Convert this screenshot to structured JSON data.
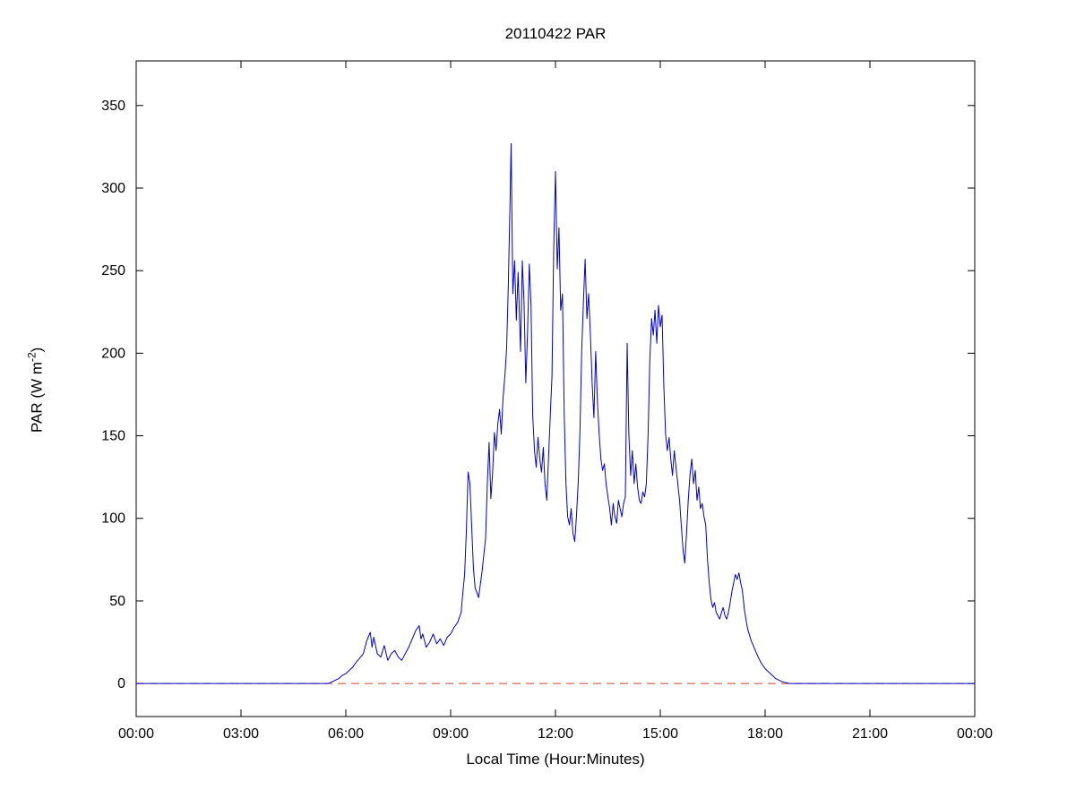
{
  "chart_data": {
    "type": "line",
    "title": "20110422 PAR",
    "xlabel": "Local Time (Hour:Minutes)",
    "ylabel": {
      "pre": "PAR (W m",
      "sup": "-2",
      "post": ")"
    },
    "xlim": [
      0,
      24
    ],
    "ylim": [
      -20,
      377
    ],
    "xticks": {
      "values": [
        0,
        3,
        6,
        9,
        12,
        15,
        18,
        21,
        24
      ],
      "labels": [
        "00:00",
        "03:00",
        "06:00",
        "09:00",
        "12:00",
        "15:00",
        "18:00",
        "21:00",
        "00:00"
      ]
    },
    "yticks": {
      "values": [
        0,
        50,
        100,
        150,
        200,
        250,
        300,
        350
      ],
      "labels": [
        "0",
        "50",
        "100",
        "150",
        "200",
        "250",
        "300",
        "350"
      ]
    },
    "grid": false,
    "box": true,
    "colors": {
      "series": "#0000cc",
      "zero_line": "#cc4433",
      "axis": "#000000"
    },
    "zero_line": {
      "y": 0,
      "style": "dashed"
    },
    "series": [
      {
        "name": "PAR",
        "points": [
          [
            0,
            0
          ],
          [
            1,
            0
          ],
          [
            2,
            0
          ],
          [
            3,
            0
          ],
          [
            4,
            0
          ],
          [
            5,
            0
          ],
          [
            5.5,
            0
          ],
          [
            5.6,
            1
          ],
          [
            5.7,
            2
          ],
          [
            5.8,
            3
          ],
          [
            5.9,
            5
          ],
          [
            6.0,
            6
          ],
          [
            6.1,
            8
          ],
          [
            6.2,
            10
          ],
          [
            6.3,
            13
          ],
          [
            6.5,
            18
          ],
          [
            6.6,
            26
          ],
          [
            6.7,
            31
          ],
          [
            6.75,
            22
          ],
          [
            6.8,
            28
          ],
          [
            6.9,
            18
          ],
          [
            7.0,
            16
          ],
          [
            7.1,
            23
          ],
          [
            7.2,
            14
          ],
          [
            7.3,
            18
          ],
          [
            7.4,
            20
          ],
          [
            7.5,
            16
          ],
          [
            7.6,
            14
          ],
          [
            7.7,
            18
          ],
          [
            7.8,
            22
          ],
          [
            7.9,
            27
          ],
          [
            8.0,
            32
          ],
          [
            8.1,
            35
          ],
          [
            8.15,
            27
          ],
          [
            8.2,
            30
          ],
          [
            8.3,
            22
          ],
          [
            8.4,
            25
          ],
          [
            8.5,
            30
          ],
          [
            8.6,
            24
          ],
          [
            8.7,
            27
          ],
          [
            8.8,
            23
          ],
          [
            8.9,
            28
          ],
          [
            9.0,
            30
          ],
          [
            9.1,
            34
          ],
          [
            9.2,
            37
          ],
          [
            9.3,
            43
          ],
          [
            9.35,
            55
          ],
          [
            9.4,
            66
          ],
          [
            9.45,
            92
          ],
          [
            9.5,
            128
          ],
          [
            9.55,
            121
          ],
          [
            9.6,
            96
          ],
          [
            9.65,
            70
          ],
          [
            9.7,
            58
          ],
          [
            9.8,
            52
          ],
          [
            9.9,
            68
          ],
          [
            10.0,
            88
          ],
          [
            10.05,
            122
          ],
          [
            10.1,
            146
          ],
          [
            10.15,
            112
          ],
          [
            10.2,
            127
          ],
          [
            10.25,
            152
          ],
          [
            10.3,
            141
          ],
          [
            10.35,
            157
          ],
          [
            10.4,
            166
          ],
          [
            10.45,
            151
          ],
          [
            10.5,
            173
          ],
          [
            10.55,
            186
          ],
          [
            10.6,
            202
          ],
          [
            10.65,
            242
          ],
          [
            10.7,
            292
          ],
          [
            10.73,
            327
          ],
          [
            10.78,
            236
          ],
          [
            10.83,
            256
          ],
          [
            10.88,
            220
          ],
          [
            10.93,
            249
          ],
          [
            11.0,
            201
          ],
          [
            11.05,
            256
          ],
          [
            11.1,
            231
          ],
          [
            11.15,
            182
          ],
          [
            11.2,
            212
          ],
          [
            11.25,
            254
          ],
          [
            11.3,
            229
          ],
          [
            11.35,
            162
          ],
          [
            11.4,
            141
          ],
          [
            11.45,
            131
          ],
          [
            11.5,
            149
          ],
          [
            11.55,
            136
          ],
          [
            11.6,
            128
          ],
          [
            11.65,
            143
          ],
          [
            11.7,
            121
          ],
          [
            11.75,
            111
          ],
          [
            11.8,
            136
          ],
          [
            11.85,
            161
          ],
          [
            11.9,
            186
          ],
          [
            11.95,
            262
          ],
          [
            12.0,
            310
          ],
          [
            12.05,
            251
          ],
          [
            12.1,
            276
          ],
          [
            12.15,
            226
          ],
          [
            12.2,
            236
          ],
          [
            12.25,
            162
          ],
          [
            12.3,
            121
          ],
          [
            12.35,
            101
          ],
          [
            12.4,
            96
          ],
          [
            12.45,
            106
          ],
          [
            12.5,
            91
          ],
          [
            12.55,
            86
          ],
          [
            12.6,
            101
          ],
          [
            12.65,
            122
          ],
          [
            12.7,
            152
          ],
          [
            12.75,
            202
          ],
          [
            12.8,
            231
          ],
          [
            12.85,
            257
          ],
          [
            12.9,
            221
          ],
          [
            12.95,
            236
          ],
          [
            13.0,
            211
          ],
          [
            13.05,
            181
          ],
          [
            13.1,
            161
          ],
          [
            13.15,
            201
          ],
          [
            13.2,
            171
          ],
          [
            13.25,
            151
          ],
          [
            13.3,
            136
          ],
          [
            13.35,
            129
          ],
          [
            13.4,
            133
          ],
          [
            13.45,
            121
          ],
          [
            13.5,
            113
          ],
          [
            13.55,
            106
          ],
          [
            13.6,
            96
          ],
          [
            13.65,
            109
          ],
          [
            13.7,
            101
          ],
          [
            13.75,
            97
          ],
          [
            13.8,
            111
          ],
          [
            13.85,
            106
          ],
          [
            13.9,
            101
          ],
          [
            13.95,
            109
          ],
          [
            14.0,
            113
          ],
          [
            14.05,
            206
          ],
          [
            14.1,
            151
          ],
          [
            14.15,
            126
          ],
          [
            14.2,
            141
          ],
          [
            14.25,
            121
          ],
          [
            14.3,
            133
          ],
          [
            14.35,
            119
          ],
          [
            14.4,
            111
          ],
          [
            14.45,
            109
          ],
          [
            14.5,
            116
          ],
          [
            14.55,
            113
          ],
          [
            14.6,
            121
          ],
          [
            14.65,
            151
          ],
          [
            14.7,
            196
          ],
          [
            14.75,
            221
          ],
          [
            14.8,
            211
          ],
          [
            14.85,
            226
          ],
          [
            14.9,
            206
          ],
          [
            14.95,
            229
          ],
          [
            15.0,
            216
          ],
          [
            15.05,
            223
          ],
          [
            15.1,
            181
          ],
          [
            15.15,
            151
          ],
          [
            15.2,
            141
          ],
          [
            15.25,
            149
          ],
          [
            15.3,
            136
          ],
          [
            15.35,
            126
          ],
          [
            15.4,
            141
          ],
          [
            15.45,
            131
          ],
          [
            15.5,
            121
          ],
          [
            15.55,
            111
          ],
          [
            15.6,
            96
          ],
          [
            15.65,
            81
          ],
          [
            15.7,
            73
          ],
          [
            15.75,
            91
          ],
          [
            15.8,
            111
          ],
          [
            15.85,
            126
          ],
          [
            15.9,
            136
          ],
          [
            15.95,
            121
          ],
          [
            16.0,
            129
          ],
          [
            16.05,
            111
          ],
          [
            16.1,
            119
          ],
          [
            16.15,
            106
          ],
          [
            16.2,
            109
          ],
          [
            16.25,
            101
          ],
          [
            16.3,
            96
          ],
          [
            16.35,
            76
          ],
          [
            16.4,
            61
          ],
          [
            16.45,
            51
          ],
          [
            16.5,
            46
          ],
          [
            16.55,
            49
          ],
          [
            16.6,
            43
          ],
          [
            16.65,
            41
          ],
          [
            16.7,
            39
          ],
          [
            16.75,
            43
          ],
          [
            16.8,
            46
          ],
          [
            16.85,
            41
          ],
          [
            16.9,
            39
          ],
          [
            16.95,
            43
          ],
          [
            17.0,
            49
          ],
          [
            17.05,
            56
          ],
          [
            17.1,
            61
          ],
          [
            17.15,
            66
          ],
          [
            17.2,
            63
          ],
          [
            17.25,
            67
          ],
          [
            17.3,
            61
          ],
          [
            17.35,
            56
          ],
          [
            17.4,
            46
          ],
          [
            17.45,
            39
          ],
          [
            17.5,
            33
          ],
          [
            17.6,
            26
          ],
          [
            17.7,
            21
          ],
          [
            17.8,
            16
          ],
          [
            17.9,
            12
          ],
          [
            18.0,
            9
          ],
          [
            18.1,
            7
          ],
          [
            18.2,
            5
          ],
          [
            18.3,
            3
          ],
          [
            18.4,
            2
          ],
          [
            18.5,
            1
          ],
          [
            18.6,
            0.5
          ],
          [
            18.7,
            0
          ],
          [
            19,
            0
          ],
          [
            20,
            0
          ],
          [
            21,
            0
          ],
          [
            22,
            0
          ],
          [
            23,
            0
          ],
          [
            24,
            0
          ]
        ]
      }
    ]
  }
}
